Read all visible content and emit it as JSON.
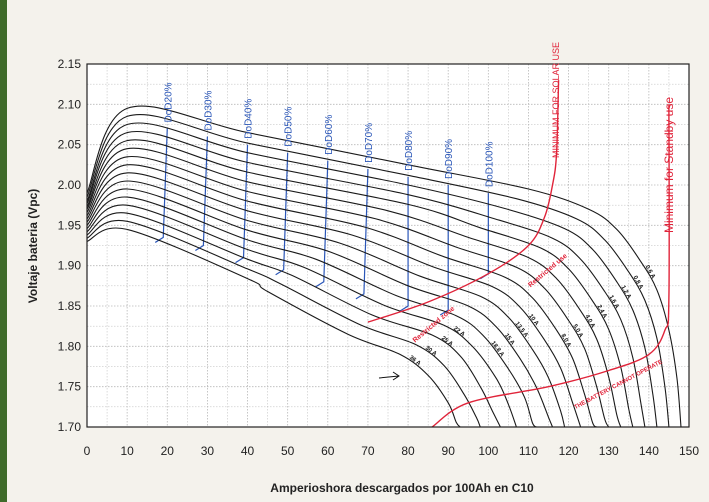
{
  "chart_data": {
    "type": "line",
    "title": "",
    "xlabel": "Amperioshora descargados por 100Ah en C10",
    "ylabel": "Voltaje bateria (Vpc)",
    "xlim": [
      0,
      150
    ],
    "ylim": [
      1.7,
      2.15
    ],
    "grid": true,
    "x_ticks": [
      "0",
      "10",
      "20",
      "30",
      "40",
      "50",
      "60",
      "70",
      "80",
      "90",
      "100",
      "110",
      "120",
      "130",
      "140",
      "150"
    ],
    "y_ticks": [
      "1.70",
      "1.75",
      "1.80",
      "1.85",
      "1.90",
      "1.95",
      "2.00",
      "2.05",
      "2.10",
      "2.15"
    ],
    "curve_colors": {
      "discharge": "#1a1a1a",
      "dod": "#2a56b8",
      "limit": "#e0243a"
    },
    "series": [
      {
        "name": "0.6 A",
        "values": [
          [
            0,
            1.99
          ],
          [
            10,
            2.095
          ],
          [
            40,
            2.065
          ],
          [
            80,
            2.025
          ],
          [
            110,
            1.995
          ],
          [
            125,
            1.97
          ],
          [
            132,
            1.945
          ],
          [
            138,
            1.905
          ],
          [
            142,
            1.87
          ],
          [
            145,
            1.82
          ],
          [
            147,
            1.76
          ],
          [
            148,
            1.7
          ]
        ]
      },
      {
        "name": "0.8 A",
        "values": [
          [
            0,
            1.985
          ],
          [
            10,
            2.085
          ],
          [
            40,
            2.052
          ],
          [
            80,
            2.012
          ],
          [
            107,
            1.983
          ],
          [
            122,
            1.958
          ],
          [
            129,
            1.932
          ],
          [
            135,
            1.892
          ],
          [
            139,
            1.857
          ],
          [
            142,
            1.81
          ],
          [
            144,
            1.75
          ],
          [
            145,
            1.7
          ]
        ]
      },
      {
        "name": "1.2 A",
        "values": [
          [
            0,
            1.98
          ],
          [
            10,
            2.075
          ],
          [
            40,
            2.04
          ],
          [
            80,
            2.0
          ],
          [
            104,
            1.971
          ],
          [
            119,
            1.946
          ],
          [
            126,
            1.92
          ],
          [
            132,
            1.88
          ],
          [
            136,
            1.845
          ],
          [
            139,
            1.798
          ],
          [
            141,
            1.74
          ],
          [
            142,
            1.7
          ]
        ]
      },
      {
        "name": "1.6 A",
        "values": [
          [
            0,
            1.977
          ],
          [
            10,
            2.065
          ],
          [
            40,
            2.028
          ],
          [
            80,
            1.988
          ],
          [
            101,
            1.959
          ],
          [
            116,
            1.934
          ],
          [
            123,
            1.908
          ],
          [
            129,
            1.868
          ],
          [
            133,
            1.833
          ],
          [
            136,
            1.786
          ],
          [
            138,
            1.73
          ],
          [
            139,
            1.7
          ]
        ]
      },
      {
        "name": "2.4 A",
        "values": [
          [
            0,
            1.973
          ],
          [
            10,
            2.055
          ],
          [
            40,
            2.016
          ],
          [
            80,
            1.976
          ],
          [
            98,
            1.947
          ],
          [
            113,
            1.922
          ],
          [
            120,
            1.896
          ],
          [
            126,
            1.856
          ],
          [
            130,
            1.821
          ],
          [
            133,
            1.774
          ],
          [
            135,
            1.722
          ],
          [
            136,
            1.7
          ]
        ]
      },
      {
        "name": "4.0 A",
        "values": [
          [
            0,
            1.97
          ],
          [
            10,
            2.045
          ],
          [
            40,
            2.004
          ],
          [
            75,
            1.968
          ],
          [
            95,
            1.935
          ],
          [
            110,
            1.91
          ],
          [
            117,
            1.884
          ],
          [
            123,
            1.844
          ],
          [
            127,
            1.809
          ],
          [
            130,
            1.762
          ],
          [
            132,
            1.715
          ],
          [
            133,
            1.7
          ]
        ]
      },
      {
        "name": "5.0 A",
        "values": [
          [
            0,
            1.966
          ],
          [
            10,
            2.035
          ],
          [
            40,
            1.992
          ],
          [
            72,
            1.958
          ],
          [
            92,
            1.923
          ],
          [
            107,
            1.898
          ],
          [
            114,
            1.872
          ],
          [
            120,
            1.832
          ],
          [
            124,
            1.797
          ],
          [
            127,
            1.75
          ],
          [
            129,
            1.71
          ],
          [
            130,
            1.7
          ]
        ]
      },
      {
        "name": "8.0 A",
        "values": [
          [
            0,
            1.962
          ],
          [
            10,
            2.025
          ],
          [
            40,
            1.98
          ],
          [
            69,
            1.948
          ],
          [
            89,
            1.911
          ],
          [
            104,
            1.886
          ],
          [
            111,
            1.86
          ],
          [
            117,
            1.82
          ],
          [
            121,
            1.785
          ],
          [
            124,
            1.74
          ],
          [
            126,
            1.705
          ],
          [
            127,
            1.7
          ]
        ]
      },
      {
        "name": "10 A",
        "values": [
          [
            0,
            1.958
          ],
          [
            10,
            2.015
          ],
          [
            40,
            1.968
          ],
          [
            66,
            1.938
          ],
          [
            86,
            1.899
          ],
          [
            101,
            1.874
          ],
          [
            108,
            1.848
          ],
          [
            114,
            1.808
          ],
          [
            118,
            1.773
          ],
          [
            121,
            1.73
          ],
          [
            123,
            1.7
          ]
        ]
      },
      {
        "name": "13.5 A",
        "values": [
          [
            0,
            1.954
          ],
          [
            10,
            2.005
          ],
          [
            40,
            1.956
          ],
          [
            63,
            1.928
          ],
          [
            83,
            1.887
          ],
          [
            98,
            1.862
          ],
          [
            105,
            1.836
          ],
          [
            111,
            1.796
          ],
          [
            115,
            1.761
          ],
          [
            118,
            1.72
          ],
          [
            119,
            1.7
          ]
        ]
      },
      {
        "name": "15 A",
        "values": [
          [
            0,
            1.95
          ],
          [
            10,
            1.995
          ],
          [
            40,
            1.944
          ],
          [
            60,
            1.918
          ],
          [
            80,
            1.875
          ],
          [
            95,
            1.85
          ],
          [
            102,
            1.824
          ],
          [
            108,
            1.784
          ],
          [
            112,
            1.749
          ],
          [
            115,
            1.712
          ],
          [
            116,
            1.7
          ]
        ]
      },
      {
        "name": "18.8 A",
        "values": [
          [
            0,
            1.946
          ],
          [
            10,
            1.985
          ],
          [
            40,
            1.932
          ],
          [
            57,
            1.908
          ],
          [
            77,
            1.863
          ],
          [
            92,
            1.838
          ],
          [
            99,
            1.812
          ],
          [
            105,
            1.772
          ],
          [
            109,
            1.737
          ],
          [
            111,
            1.705
          ],
          [
            112,
            1.7
          ]
        ]
      },
      {
        "name": "22 A",
        "values": [
          [
            0,
            1.942
          ],
          [
            10,
            1.975
          ],
          [
            40,
            1.92
          ],
          [
            54,
            1.898
          ],
          [
            74,
            1.851
          ],
          [
            89,
            1.826
          ],
          [
            96,
            1.8
          ],
          [
            102,
            1.76
          ],
          [
            105,
            1.728
          ],
          [
            107,
            1.7
          ]
        ]
      },
      {
        "name": "25 A",
        "values": [
          [
            0,
            1.938
          ],
          [
            10,
            1.965
          ],
          [
            40,
            1.908
          ],
          [
            51,
            1.888
          ],
          [
            71,
            1.839
          ],
          [
            86,
            1.814
          ],
          [
            93,
            1.788
          ],
          [
            98,
            1.75
          ],
          [
            101,
            1.72
          ],
          [
            103,
            1.7
          ]
        ]
      },
      {
        "name": "30 A",
        "values": [
          [
            0,
            1.934
          ],
          [
            10,
            1.955
          ],
          [
            40,
            1.896
          ],
          [
            48,
            1.878
          ],
          [
            68,
            1.827
          ],
          [
            82,
            1.802
          ],
          [
            89,
            1.776
          ],
          [
            94,
            1.74
          ],
          [
            97,
            1.712
          ],
          [
            98,
            1.7
          ]
        ]
      },
      {
        "name": "36 A",
        "values": [
          [
            0,
            1.93
          ],
          [
            10,
            1.945
          ],
          [
            40,
            1.884
          ],
          [
            45,
            1.868
          ],
          [
            65,
            1.815
          ],
          [
            78,
            1.79
          ],
          [
            85,
            1.764
          ],
          [
            90,
            1.73
          ],
          [
            92,
            1.706
          ],
          [
            93,
            1.7
          ]
        ]
      }
    ],
    "dod_lines": [
      {
        "name": "DoD20%",
        "x": 20,
        "values": [
          [
            20,
            2.07
          ],
          [
            19,
            1.935
          ]
        ]
      },
      {
        "name": "DoD30%",
        "x": 30,
        "values": [
          [
            30,
            2.06
          ],
          [
            29,
            1.925
          ]
        ]
      },
      {
        "name": "DoD40%",
        "x": 40,
        "values": [
          [
            40,
            2.05
          ],
          [
            39,
            1.91
          ]
        ]
      },
      {
        "name": "DoD50%",
        "x": 50,
        "values": [
          [
            50,
            2.04
          ],
          [
            49,
            1.895
          ]
        ]
      },
      {
        "name": "DoD60%",
        "x": 60,
        "values": [
          [
            60,
            2.03
          ],
          [
            59,
            1.88
          ]
        ]
      },
      {
        "name": "DoD70%",
        "x": 70,
        "values": [
          [
            70,
            2.02
          ],
          [
            69,
            1.865
          ]
        ]
      },
      {
        "name": "DoD80%",
        "x": 80,
        "values": [
          [
            80,
            2.01
          ],
          [
            80,
            1.85
          ]
        ]
      },
      {
        "name": "DoD90%",
        "x": 90,
        "values": [
          [
            90,
            2.0
          ],
          [
            90,
            1.845
          ]
        ]
      },
      {
        "name": "DoD100%",
        "x": 100,
        "values": [
          [
            100,
            1.99
          ],
          [
            100,
            1.89
          ]
        ]
      }
    ],
    "red_curves": [
      {
        "name": "MINIMUM FOR SOLAR USE",
        "values": [
          [
            70,
            1.83
          ],
          [
            85,
            1.855
          ],
          [
            100,
            1.89
          ],
          [
            110,
            1.925
          ],
          [
            114,
            1.96
          ],
          [
            116,
            2.0
          ],
          [
            117,
            2.04
          ],
          [
            117.5,
            2.13
          ]
        ]
      },
      {
        "name": "Minimum for Standby use",
        "values": [
          [
            145,
            2.1
          ],
          [
            145,
            1.86
          ],
          [
            144,
            1.82
          ],
          [
            140,
            1.79
          ],
          [
            130,
            1.77
          ],
          [
            115,
            1.75
          ],
          [
            95,
            1.73
          ],
          [
            86,
            1.7
          ]
        ]
      }
    ],
    "annotations": [
      "DoD20%",
      "DoD30%",
      "DoD40%",
      "DoD50%",
      "DoD60%",
      "DoD70%",
      "DoD80%",
      "DoD90%",
      "DoD100%",
      "MINIMUM FOR SOLAR USE",
      "Minimum for Standby use",
      "Restricted zone",
      "Restricted use",
      "THE BATTERY CANNOT OPERATE"
    ]
  }
}
